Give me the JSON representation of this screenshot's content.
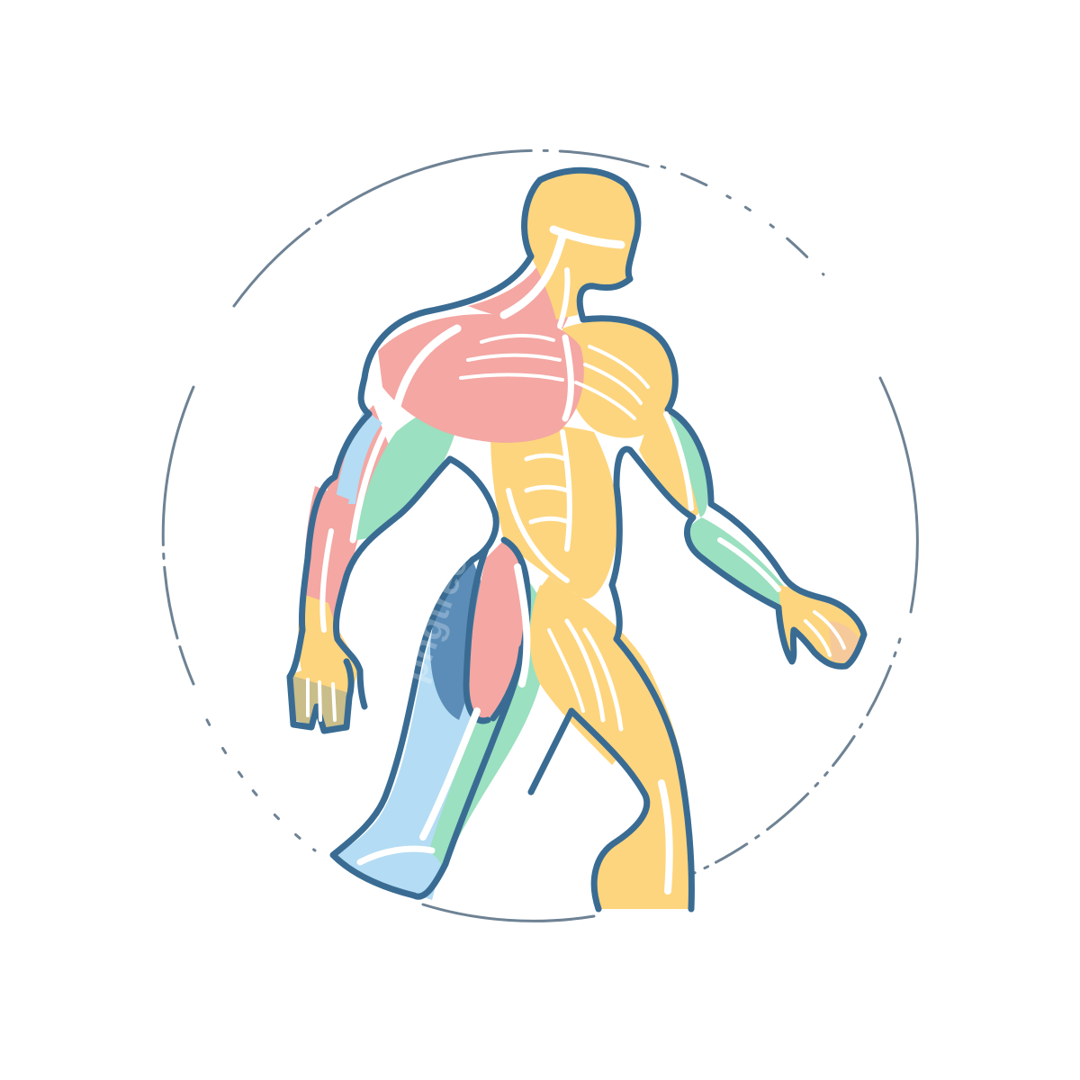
{
  "illustration": {
    "subject": "muscular-anatomy-figure-walking",
    "watermark_text": "pngtree",
    "colors": {
      "background": "#ffffff",
      "ring": "#6e8294",
      "outline": "#3a6c93",
      "highlight": "#ffffff",
      "yellow": "#fdd57e",
      "pink": "#f4a7a3",
      "green": "#9be0c0",
      "blue": "#b4dcf4",
      "dark_blue": "#5b8db8"
    },
    "icons": [
      "anatomy-figure-icon",
      "dashed-circle-ring-icon"
    ]
  }
}
